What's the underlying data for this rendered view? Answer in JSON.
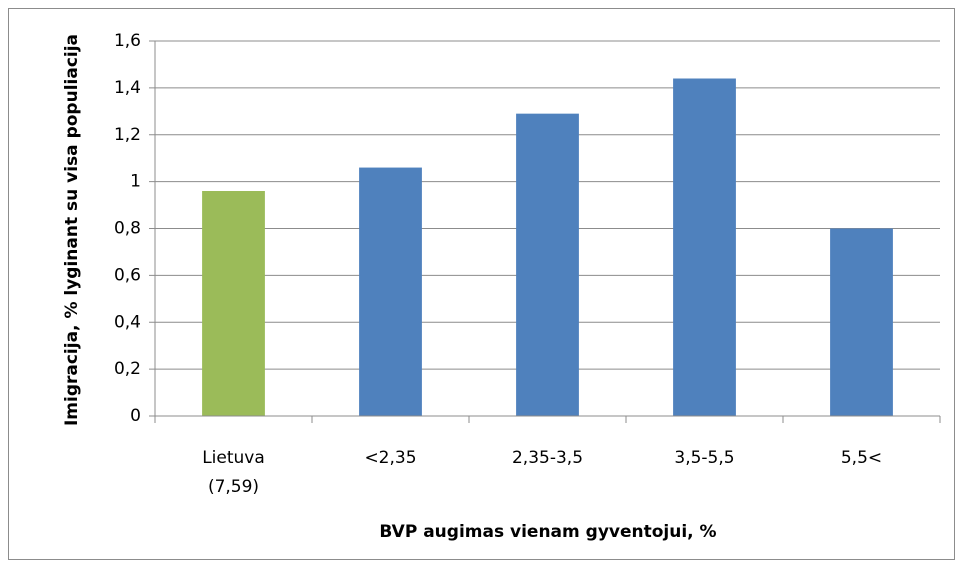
{
  "chart_data": {
    "type": "bar",
    "categories": [
      "Lietuva (7,59)",
      "<2,35",
      "2,35-3,5",
      "3,5-5,5",
      "5,5<"
    ],
    "values": [
      0.96,
      1.06,
      1.29,
      1.44,
      0.8
    ],
    "colors": [
      "#9bbb59",
      "#4f81bd",
      "#4f81bd",
      "#4f81bd",
      "#4f81bd"
    ],
    "x_label": "BVP augimas vienam gyventojui, %",
    "y_label": "Imigracija, % lyginant su visa populiacija",
    "ylim": [
      0,
      1.6
    ],
    "yticks": [
      0,
      {
        "value": 0.2,
        "label": "0,2"
      },
      {
        "value": 0.4,
        "label": "0,4"
      },
      {
        "value": 0.6,
        "label": "0,6"
      },
      {
        "value": 0.8,
        "label": "0,8"
      },
      1,
      {
        "value": 1.2,
        "label": "1,2"
      },
      {
        "value": 1.4,
        "label": "1,4"
      },
      {
        "value": 1.6,
        "label": "1,6"
      }
    ],
    "grid": true
  }
}
